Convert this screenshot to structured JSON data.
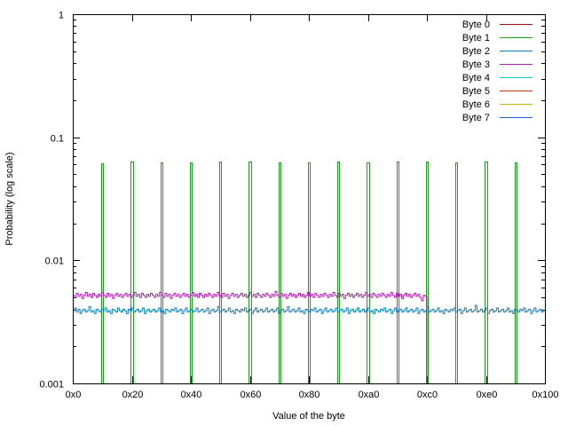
{
  "chart_data": {
    "type": "line",
    "title": "",
    "xlabel": "Value of the byte",
    "ylabel": "Probability (log scale)",
    "x_scale": "linear",
    "y_scale": "log",
    "xlim": [
      0,
      256
    ],
    "ylim": [
      0.001,
      1
    ],
    "x_ticks": [
      {
        "value": 0,
        "label": "0x0"
      },
      {
        "value": 32,
        "label": "0x20"
      },
      {
        "value": 64,
        "label": "0x40"
      },
      {
        "value": 96,
        "label": "0x60"
      },
      {
        "value": 128,
        "label": "0x80"
      },
      {
        "value": 160,
        "label": "0xa0"
      },
      {
        "value": 192,
        "label": "0xc0"
      },
      {
        "value": 224,
        "label": "0xe0"
      },
      {
        "value": 256,
        "label": "0x100"
      }
    ],
    "y_ticks": [
      {
        "value": 0.001,
        "label": "0.001"
      },
      {
        "value": 0.01,
        "label": "0.01"
      },
      {
        "value": 0.1,
        "label": "0.1"
      },
      {
        "value": 1,
        "label": "1"
      }
    ],
    "grid": false,
    "legend_position": "top-right",
    "series": [
      {
        "name": "Byte 0",
        "color": "#a01010",
        "x": [],
        "y": []
      },
      {
        "name": "Byte 1",
        "color": "#1aa31a",
        "note_of_values": "spikes",
        "spikes": [
          {
            "x": 16,
            "y": 0.061
          },
          {
            "x": 32,
            "y": 0.064
          },
          {
            "x": 48,
            "y": 0.062
          },
          {
            "x": 64,
            "y": 0.062
          },
          {
            "x": 80,
            "y": 0.064
          },
          {
            "x": 96,
            "y": 0.063
          },
          {
            "x": 112,
            "y": 0.062
          },
          {
            "x": 128,
            "y": 0.062
          },
          {
            "x": 144,
            "y": 0.063
          },
          {
            "x": 160,
            "y": 0.062
          },
          {
            "x": 176,
            "y": 0.063
          },
          {
            "x": 192,
            "y": 0.063
          },
          {
            "x": 208,
            "y": 0.062
          },
          {
            "x": 224,
            "y": 0.063
          },
          {
            "x": 240,
            "y": 0.062
          }
        ]
      },
      {
        "name": "Byte 2",
        "color": "#0e7fbf",
        "x_range": [
          0,
          256
        ],
        "y": [
          0.0039,
          0.0041,
          0.0038,
          0.004,
          0.0037,
          0.0039,
          0.004,
          0.0038,
          0.0039,
          0.0042,
          0.0038,
          0.0039,
          0.0037,
          0.004,
          0.0039,
          0.0038,
          0.004,
          0.0039,
          0.0041,
          0.0038,
          0.0039,
          0.0037,
          0.004,
          0.0039,
          0.0038,
          0.0041,
          0.0039,
          0.0038,
          0.004,
          0.0039,
          0.0037,
          0.004,
          0.0039,
          0.0041,
          0.0038,
          0.0039,
          0.004,
          0.0038,
          0.0039,
          0.0041,
          0.0037,
          0.0039,
          0.004,
          0.0038,
          0.0039,
          0.004,
          0.0038,
          0.0039,
          0.0041,
          0.0038,
          0.0039,
          0.0037,
          0.004,
          0.0039,
          0.0038,
          0.004,
          0.0039,
          0.0041,
          0.0038,
          0.0039,
          0.004,
          0.0037,
          0.0039,
          0.0041,
          0.0038,
          0.0039,
          0.004,
          0.0038,
          0.0039,
          0.0041,
          0.0038,
          0.0039,
          0.004,
          0.0038,
          0.0039,
          0.0041,
          0.0037,
          0.0039,
          0.004,
          0.0038,
          0.0039,
          0.0042,
          0.0038,
          0.0039,
          0.004,
          0.0038,
          0.0039,
          0.0041,
          0.0038,
          0.0039,
          0.0037,
          0.004,
          0.0039,
          0.0038,
          0.004,
          0.0039,
          0.0041,
          0.0038,
          0.0039,
          0.004,
          0.0037,
          0.0039,
          0.0041,
          0.0038,
          0.0039,
          0.004,
          0.0038,
          0.0039,
          0.0041,
          0.0038,
          0.0039,
          0.004,
          0.0038,
          0.0039,
          0.0041,
          0.0037,
          0.0039,
          0.004,
          0.0038,
          0.0039,
          0.0042,
          0.0038,
          0.0039,
          0.004,
          0.0038,
          0.0039,
          0.0041,
          0.0038,
          0.0039,
          0.0037,
          0.004,
          0.0039,
          0.0038,
          0.004,
          0.0039,
          0.0041,
          0.0038,
          0.0039,
          0.004,
          0.0037,
          0.0039,
          0.0041,
          0.0038,
          0.0039,
          0.004,
          0.0038,
          0.0039,
          0.0041,
          0.0038,
          0.0039,
          0.004,
          0.0038,
          0.0039,
          0.0041,
          0.0037,
          0.0039,
          0.004,
          0.0038,
          0.0039,
          0.0041,
          0.0038,
          0.0039,
          0.004,
          0.0038,
          0.0039,
          0.0041,
          0.0038,
          0.0039,
          0.0037,
          0.004,
          0.0039,
          0.0038,
          0.004,
          0.0039,
          0.0041,
          0.0038,
          0.0039,
          0.004,
          0.0037,
          0.0039,
          0.0041,
          0.0038,
          0.0039,
          0.004,
          0.0038,
          0.0039,
          0.0041,
          0.0038,
          0.0039,
          0.004,
          0.0038,
          0.0039,
          0.0041,
          0.0037,
          0.0039,
          0.004,
          0.0038,
          0.0039,
          0.0042,
          0.0038,
          0.0039,
          0.004,
          0.0038,
          0.0039,
          0.0041,
          0.0038,
          0.0039,
          0.0037,
          0.004,
          0.0039,
          0.0038,
          0.004,
          0.0039,
          0.0041,
          0.0038,
          0.0039,
          0.004,
          0.0037,
          0.0039,
          0.0041,
          0.0038,
          0.0039,
          0.004,
          0.0038,
          0.0039,
          0.0043,
          0.0038,
          0.0039,
          0.004,
          0.0038,
          0.0039,
          0.0041,
          0.0037,
          0.0039,
          0.004,
          0.0038,
          0.0039,
          0.0041,
          0.0038,
          0.0039,
          0.004,
          0.0038,
          0.0039,
          0.0041,
          0.0038,
          0.0039,
          0.0037,
          0.004,
          0.0039,
          0.0038,
          0.004,
          0.0039,
          0.0041,
          0.0038,
          0.0039,
          0.004,
          0.0037,
          0.0039,
          0.0041,
          0.0038,
          0.0039,
          0.004,
          0.0038,
          0.0039
        ]
      },
      {
        "name": "Byte 3",
        "color": "#b21bb2",
        "x_range": [
          0,
          192
        ],
        "y": [
          0.0052,
          0.005,
          0.0054,
          0.0051,
          0.0053,
          0.0049,
          0.0052,
          0.0055,
          0.0051,
          0.0053,
          0.005,
          0.0054,
          0.0052,
          0.005,
          0.0053,
          0.0051,
          0.0055,
          0.0052,
          0.005,
          0.0054,
          0.0051,
          0.0053,
          0.0049,
          0.0052,
          0.0054,
          0.0051,
          0.0053,
          0.005,
          0.0052,
          0.0054,
          0.0051,
          0.0053,
          0.005,
          0.0052,
          0.0055,
          0.0051,
          0.0053,
          0.005,
          0.0054,
          0.0052,
          0.005,
          0.0053,
          0.0051,
          0.0054,
          0.0052,
          0.005,
          0.0053,
          0.0051,
          0.0055,
          0.0052,
          0.005,
          0.0054,
          0.0051,
          0.0053,
          0.0049,
          0.0052,
          0.0054,
          0.0051,
          0.0053,
          0.005,
          0.0052,
          0.0054,
          0.0051,
          0.0053,
          0.005,
          0.0052,
          0.0055,
          0.0051,
          0.0053,
          0.005,
          0.0054,
          0.0052,
          0.005,
          0.0053,
          0.0051,
          0.0054,
          0.0052,
          0.005,
          0.0053,
          0.0051,
          0.0055,
          0.0052,
          0.005,
          0.0054,
          0.0051,
          0.0053,
          0.0049,
          0.0052,
          0.0054,
          0.0051,
          0.0053,
          0.005,
          0.0052,
          0.0054,
          0.0051,
          0.0053,
          0.005,
          0.0052,
          0.0055,
          0.0051,
          0.0053,
          0.005,
          0.0054,
          0.0052,
          0.005,
          0.0053,
          0.0051,
          0.0054,
          0.0052,
          0.005,
          0.0053,
          0.0051,
          0.0056,
          0.0052,
          0.005,
          0.0054,
          0.0051,
          0.0053,
          0.0049,
          0.0052,
          0.0054,
          0.0051,
          0.0053,
          0.005,
          0.0052,
          0.0054,
          0.0051,
          0.0053,
          0.005,
          0.0052,
          0.0055,
          0.0051,
          0.0053,
          0.005,
          0.0054,
          0.0052,
          0.005,
          0.0053,
          0.0051,
          0.0054,
          0.0052,
          0.005,
          0.0053,
          0.0051,
          0.0055,
          0.0052,
          0.005,
          0.0054,
          0.0051,
          0.0053,
          0.0049,
          0.0052,
          0.0054,
          0.0051,
          0.0053,
          0.005,
          0.0052,
          0.0054,
          0.0051,
          0.0053,
          0.005,
          0.0052,
          0.0055,
          0.0051,
          0.0053,
          0.005,
          0.0054,
          0.0052,
          0.005,
          0.0053,
          0.0051,
          0.0054,
          0.0052,
          0.005,
          0.0053,
          0.0051,
          0.0055,
          0.0052,
          0.005,
          0.0054,
          0.0051,
          0.0053,
          0.0049,
          0.0052,
          0.0054,
          0.0051,
          0.0053,
          0.005,
          0.0052,
          0.0054,
          0.0051,
          0.0053,
          0.005,
          0.0047,
          0.0052,
          0.0051
        ]
      },
      {
        "name": "Byte 4",
        "color": "#19c6c6",
        "x": [],
        "y": []
      },
      {
        "name": "Byte 5",
        "color": "#bf3a0d",
        "x": [],
        "y": []
      },
      {
        "name": "Byte 6",
        "color": "#c9b400",
        "x": [],
        "y": []
      },
      {
        "name": "Byte 7",
        "color": "#1f5fd8",
        "x": [],
        "y": []
      }
    ]
  }
}
